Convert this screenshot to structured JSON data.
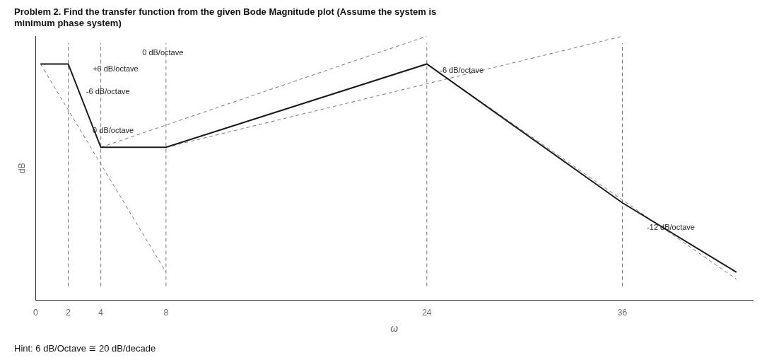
{
  "chart_data": {
    "type": "line",
    "title": "Problem 2. Find the transfer function from the given Bode Magnitude plot (Assume the system is\nminimum phase system)",
    "subtitle": "Hint: 6 dB/Octave ≅ 20 dB/decade",
    "x_label": "ω",
    "y_label": "dB",
    "xlim": [
      0,
      44
    ],
    "xticks": [
      0,
      2,
      4,
      8,
      24,
      36
    ],
    "ylim": [
      -7,
      12
    ],
    "tick_labels": "x",
    "grid": false,
    "series": [
      {
        "x": [
          0.3,
          2,
          4,
          8,
          24,
          36,
          43
        ],
        "values": [
          10,
          10,
          4,
          4,
          10,
          0,
          -5
        ],
        "color": "#1a1a1a",
        "line_style": "solid"
      },
      {
        "x": [
          0.3,
          8
        ],
        "values": [
          10,
          -5
        ],
        "color": "#777777",
        "line_style": "dashed"
      },
      {
        "x": [
          4,
          24
        ],
        "values": [
          4,
          12
        ],
        "color": "#777777",
        "line_style": "dashed"
      },
      {
        "x": [
          8,
          36
        ],
        "values": [
          4,
          12
        ],
        "color": "#777777",
        "line_style": "dashed"
      },
      {
        "x": [
          24,
          43
        ],
        "values": [
          10,
          -5.5
        ],
        "color": "#777777",
        "line_style": "dashed"
      },
      {
        "x": [
          2,
          2
        ],
        "values": [
          -6,
          11.5
        ],
        "color": "#777777",
        "line_style": "dashed"
      },
      {
        "x": [
          4,
          4
        ],
        "values": [
          -6,
          11.5
        ],
        "color": "#777777",
        "line_style": "dashed"
      },
      {
        "x": [
          8,
          8
        ],
        "values": [
          -6,
          11.5
        ],
        "color": "#777777",
        "line_style": "dashed"
      },
      {
        "x": [
          24,
          24
        ],
        "values": [
          -6,
          11.5
        ],
        "color": "#777777",
        "line_style": "dashed"
      },
      {
        "x": [
          36,
          36
        ],
        "values": [
          -6,
          11.5
        ],
        "color": "#777777",
        "line_style": "dashed"
      }
    ],
    "annotations": [
      {
        "text": "+6 dB/octave",
        "x": 6.3,
        "y": 9.6,
        "align": "right"
      },
      {
        "text": "-6 dB/octave",
        "x": 3.1,
        "y": 8.0,
        "align": "left"
      },
      {
        "text": "0 dB/octave",
        "x": 3.5,
        "y": 5.2,
        "align": "left"
      },
      {
        "text": "0 dB/octave",
        "x": 7.8,
        "y": 10.8,
        "align": "center"
      },
      {
        "text": "-6 dB/octave",
        "x": 24.8,
        "y": 9.5,
        "align": "left"
      },
      {
        "text": "-12 dB/octave",
        "x": 37.5,
        "y": -1.8,
        "align": "left"
      }
    ]
  }
}
